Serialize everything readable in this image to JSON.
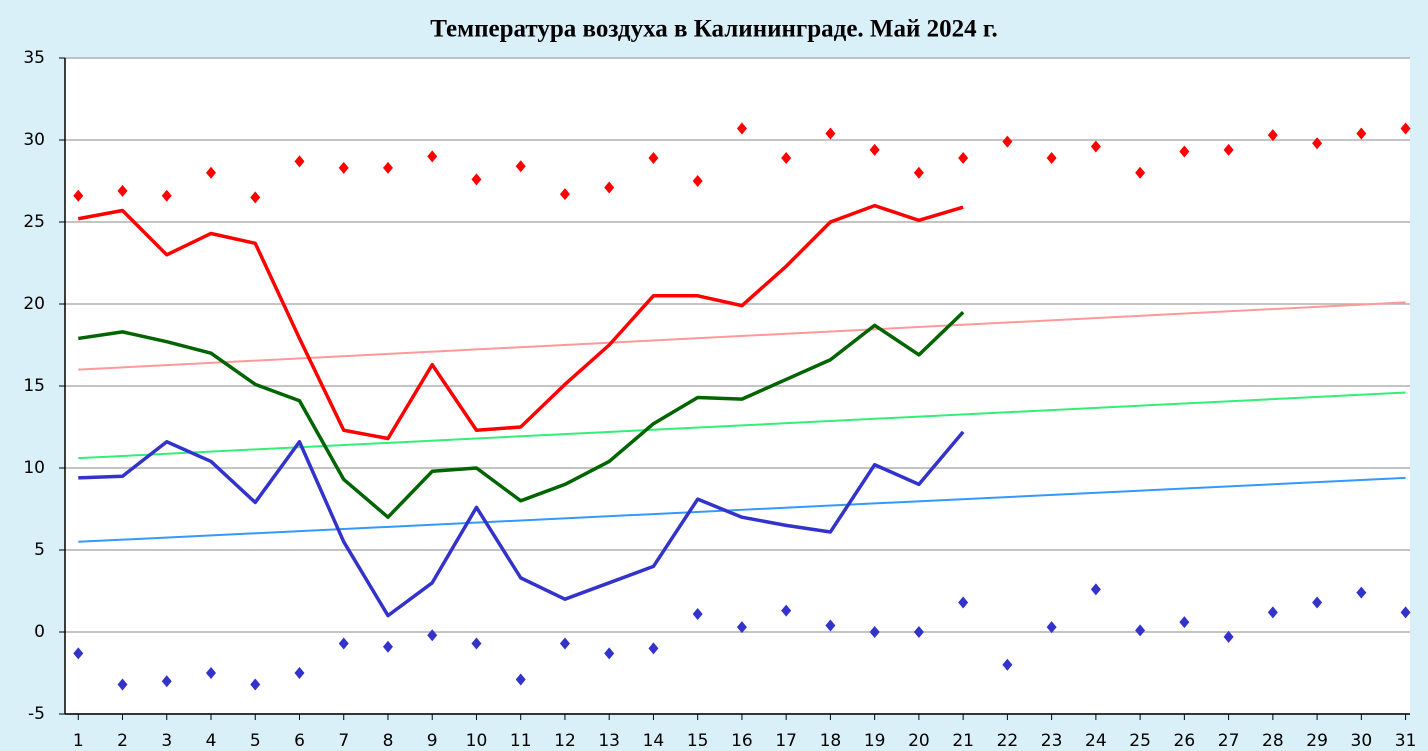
{
  "chart_data": {
    "type": "line",
    "title": "Температура воздуха в Калининграде. Май 2024 г.",
    "x": [
      1,
      2,
      3,
      4,
      5,
      6,
      7,
      8,
      9,
      10,
      11,
      12,
      13,
      14,
      15,
      16,
      17,
      18,
      19,
      20,
      21,
      22,
      23,
      24,
      25,
      26,
      27,
      28,
      29,
      30,
      31
    ],
    "xlim": [
      0.7,
      31.1
    ],
    "xticks": [
      1,
      2,
      3,
      4,
      5,
      6,
      7,
      8,
      9,
      10,
      11,
      12,
      13,
      14,
      15,
      16,
      17,
      18,
      19,
      20,
      21,
      22,
      23,
      24,
      25,
      26,
      27,
      28,
      29,
      30,
      31
    ],
    "ylim": [
      -5,
      35
    ],
    "yticks": [
      -5,
      0,
      5,
      10,
      15,
      20,
      25,
      30,
      35
    ],
    "grid": true,
    "series": [
      {
        "color": "#ff9999",
        "style": "line",
        "x": [
          1,
          31
        ],
        "values": [
          16.0,
          20.1
        ]
      },
      {
        "color": "#33ee77",
        "style": "line",
        "x": [
          1,
          31
        ],
        "values": [
          10.6,
          14.6
        ]
      },
      {
        "color": "#3399ff",
        "style": "line",
        "x": [
          1,
          31
        ],
        "values": [
          5.5,
          9.4
        ]
      },
      {
        "color": "#ff0000",
        "style": "markers",
        "values": [
          26.6,
          26.9,
          26.6,
          28.0,
          26.5,
          28.7,
          28.3,
          28.3,
          29.0,
          27.6,
          28.4,
          26.7,
          27.1,
          28.9,
          27.5,
          30.7,
          28.9,
          30.4,
          29.4,
          28.0,
          28.9,
          29.9,
          28.9,
          29.6,
          28.0,
          29.3,
          29.4,
          30.3,
          29.8,
          30.4,
          30.7
        ]
      },
      {
        "color": "#3333cc",
        "style": "markers",
        "values": [
          -1.3,
          -3.2,
          -3.0,
          -2.5,
          -3.2,
          -2.5,
          -0.7,
          -0.9,
          -0.2,
          -0.7,
          -2.9,
          -0.7,
          -1.3,
          -1.0,
          1.1,
          0.3,
          1.3,
          0.4,
          0.0,
          0.0,
          1.8,
          -2.0,
          0.3,
          2.6,
          0.1,
          0.6,
          -0.3,
          1.2,
          1.8,
          2.4,
          1.2
        ]
      },
      {
        "color": "#ff0000",
        "style": "line",
        "values": [
          25.2,
          25.7,
          23.0,
          24.3,
          23.7,
          17.9,
          12.3,
          11.8,
          16.3,
          12.3,
          12.5,
          15.1,
          17.5,
          20.5,
          20.5,
          19.9,
          22.3,
          25.0,
          26.0,
          25.1,
          25.9,
          null,
          null,
          null,
          null,
          null,
          null,
          null,
          null,
          null,
          null
        ]
      },
      {
        "color": "#006400",
        "style": "line",
        "values": [
          17.9,
          18.3,
          17.7,
          17.0,
          15.1,
          14.1,
          9.3,
          7.0,
          9.8,
          10.0,
          8.0,
          9.0,
          10.4,
          12.7,
          14.3,
          14.2,
          15.4,
          16.6,
          18.7,
          16.9,
          19.5,
          null,
          null,
          null,
          null,
          null,
          null,
          null,
          null,
          null,
          null
        ]
      },
      {
        "color": "#3333cc",
        "style": "line",
        "values": [
          9.4,
          9.5,
          11.6,
          10.4,
          7.9,
          11.6,
          5.5,
          1.0,
          3.0,
          7.6,
          3.3,
          2.0,
          3.0,
          4.0,
          8.1,
          7.0,
          6.5,
          6.1,
          10.2,
          9.0,
          12.2,
          null,
          null,
          null,
          null,
          null,
          null,
          null,
          null,
          null,
          null
        ]
      }
    ]
  }
}
